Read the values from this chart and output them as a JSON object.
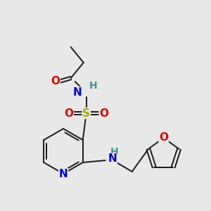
{
  "background_color": "#e8e8e8",
  "bond_color": "#1a1a1a",
  "atom_colors": {
    "O": "#dd0000",
    "N": "#0000cc",
    "S": "#aaaa00",
    "H": "#4a9090",
    "C": "#1a1a1a"
  }
}
